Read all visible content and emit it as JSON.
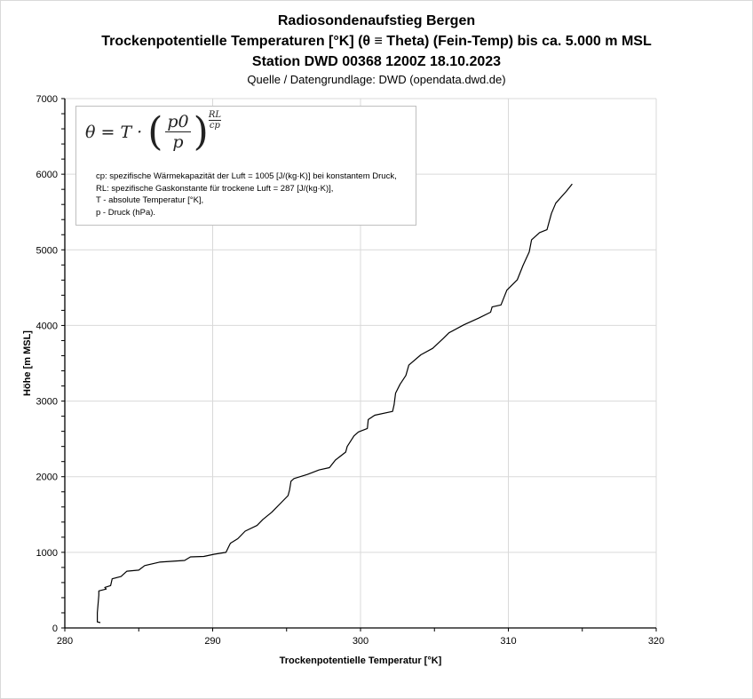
{
  "chart_data": {
    "type": "line",
    "title": "Radiosondenaufstieg Bergen",
    "subtitle_lines": [
      "Trockenpotentielle Temperaturen [°K] (θ ≡ Theta) (Fein-Temp) bis ca. 5.000 m MSL",
      "Station DWD 00368 1200Z 18.10.2023"
    ],
    "source": "Quelle / Datengrundlage: DWD (opendata.dwd.de)",
    "xlabel": "Trockenpotentielle Temperatur [°K]",
    "ylabel": "Höhe [m MSL]",
    "xlim": [
      280,
      320
    ],
    "ylim": [
      0,
      7000
    ],
    "xticks": [
      "280",
      "290",
      "300",
      "310",
      "320"
    ],
    "yticks": [
      "0",
      "1000",
      "2000",
      "3000",
      "4000",
      "5000",
      "6000",
      "7000"
    ],
    "grid": true,
    "line_color": "#000000",
    "series": [
      {
        "name": "Theta",
        "points": [
          [
            282.4,
            70
          ],
          [
            282.2,
            80
          ],
          [
            282.2,
            200
          ],
          [
            282.3,
            435
          ],
          [
            282.3,
            490
          ],
          [
            282.8,
            515
          ],
          [
            282.7,
            535
          ],
          [
            283.1,
            560
          ],
          [
            283.2,
            650
          ],
          [
            283.8,
            680
          ],
          [
            284.2,
            750
          ],
          [
            285.0,
            765
          ],
          [
            285.4,
            825
          ],
          [
            286.4,
            870
          ],
          [
            288.1,
            893
          ],
          [
            288.5,
            940
          ],
          [
            289.4,
            945
          ],
          [
            290.1,
            975
          ],
          [
            290.9,
            1000
          ],
          [
            291.1,
            1080
          ],
          [
            291.2,
            1120
          ],
          [
            291.7,
            1180
          ],
          [
            292.2,
            1280
          ],
          [
            293.0,
            1355
          ],
          [
            293.4,
            1435
          ],
          [
            294.0,
            1530
          ],
          [
            294.6,
            1650
          ],
          [
            295.1,
            1750
          ],
          [
            295.2,
            1825
          ],
          [
            295.3,
            1940
          ],
          [
            295.5,
            1975
          ],
          [
            296.4,
            2030
          ],
          [
            297.2,
            2090
          ],
          [
            297.9,
            2120
          ],
          [
            298.3,
            2220
          ],
          [
            299.0,
            2325
          ],
          [
            299.1,
            2400
          ],
          [
            299.56,
            2541
          ],
          [
            299.86,
            2592
          ],
          [
            300.46,
            2638
          ],
          [
            300.52,
            2755
          ],
          [
            300.96,
            2813
          ],
          [
            302.17,
            2864
          ],
          [
            302.27,
            2950
          ],
          [
            302.37,
            3105
          ],
          [
            302.67,
            3222
          ],
          [
            303.07,
            3339
          ],
          [
            303.27,
            3475
          ],
          [
            304.08,
            3611
          ],
          [
            304.88,
            3697
          ],
          [
            305.58,
            3825
          ],
          [
            305.98,
            3903
          ],
          [
            306.99,
            4008
          ],
          [
            307.99,
            4097
          ],
          [
            308.8,
            4175
          ],
          [
            308.9,
            4245
          ],
          [
            309.5,
            4272
          ],
          [
            309.9,
            4467
          ],
          [
            310.6,
            4603
          ],
          [
            311.0,
            4797
          ],
          [
            311.41,
            4973
          ],
          [
            311.57,
            5131
          ],
          [
            312.11,
            5228
          ],
          [
            312.61,
            5267
          ],
          [
            312.91,
            5481
          ],
          [
            313.21,
            5618
          ],
          [
            313.92,
            5774
          ],
          [
            314.32,
            5871
          ]
        ]
      }
    ]
  },
  "legend": {
    "formula": {
      "lhs": "θ = T ·",
      "num": "p0",
      "den": "p",
      "exp_num": "RL",
      "exp_den": "cp"
    },
    "lines": [
      "cp: spezifische Wärmekapazität der Luft = 1005 [J/(kg·K)] bei konstantem Druck,",
      "RL: spezifische Gaskonstante für trockene Luft = 287 [J/(kg·K)],",
      "T - absolute Temperatur [°K],",
      "p - Druck (hPa)."
    ]
  }
}
